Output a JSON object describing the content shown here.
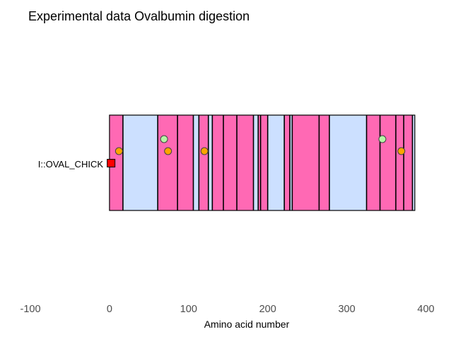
{
  "chart_data": {
    "type": "bar",
    "title": "Experimental data Ovalbumin digestion",
    "xlabel": "Amino acid number",
    "ylabel": "",
    "xlim": [
      -100,
      400
    ],
    "x_ticks": [
      -100,
      0,
      100,
      200,
      300,
      400
    ],
    "x_tick_labels": [
      "-100",
      "0",
      "100",
      "200",
      "300",
      "400"
    ],
    "grid": false,
    "legend": "none",
    "colors": {
      "pink": "#ff69b4",
      "light_blue": "#cce0ff",
      "orange": "#ffa500",
      "light_green": "#b5f5a5",
      "red": "#ff0000",
      "edge": "#000000"
    },
    "protein": {
      "name": "I::OVAL_CHICK",
      "start": 0,
      "end": 386
    },
    "segments": [
      {
        "start": 0,
        "end": 17,
        "color": "pink"
      },
      {
        "start": 17,
        "end": 61,
        "color": "light_blue"
      },
      {
        "start": 61,
        "end": 86,
        "color": "pink"
      },
      {
        "start": 86,
        "end": 106,
        "color": "pink"
      },
      {
        "start": 106,
        "end": 113,
        "color": "light_blue"
      },
      {
        "start": 113,
        "end": 125,
        "color": "pink"
      },
      {
        "start": 125,
        "end": 130,
        "color": "light_blue"
      },
      {
        "start": 130,
        "end": 144,
        "color": "pink"
      },
      {
        "start": 144,
        "end": 161,
        "color": "pink"
      },
      {
        "start": 161,
        "end": 182,
        "color": "pink"
      },
      {
        "start": 182,
        "end": 188,
        "color": "light_blue"
      },
      {
        "start": 188,
        "end": 191,
        "color": "pink"
      },
      {
        "start": 191,
        "end": 200,
        "color": "pink"
      },
      {
        "start": 200,
        "end": 221,
        "color": "light_blue"
      },
      {
        "start": 221,
        "end": 228,
        "color": "pink"
      },
      {
        "start": 228,
        "end": 231,
        "color": "light_blue"
      },
      {
        "start": 231,
        "end": 265,
        "color": "pink"
      },
      {
        "start": 265,
        "end": 278,
        "color": "pink"
      },
      {
        "start": 278,
        "end": 325,
        "color": "light_blue"
      },
      {
        "start": 325,
        "end": 342,
        "color": "pink"
      },
      {
        "start": 342,
        "end": 362,
        "color": "pink"
      },
      {
        "start": 362,
        "end": 372,
        "color": "pink"
      },
      {
        "start": 372,
        "end": 383,
        "color": "pink"
      },
      {
        "start": 383,
        "end": 386,
        "color": "light_blue"
      }
    ],
    "markers": [
      {
        "x": 12,
        "level": "lower",
        "color": "orange"
      },
      {
        "x": 69,
        "level": "upper",
        "color": "light_green"
      },
      {
        "x": 74,
        "level": "lower",
        "color": "orange"
      },
      {
        "x": 120,
        "level": "lower",
        "color": "orange"
      },
      {
        "x": 345,
        "level": "upper",
        "color": "light_green"
      },
      {
        "x": 369,
        "level": "lower",
        "color": "orange"
      }
    ],
    "start_marker": {
      "x": 2,
      "shape": "square",
      "color": "red"
    }
  }
}
